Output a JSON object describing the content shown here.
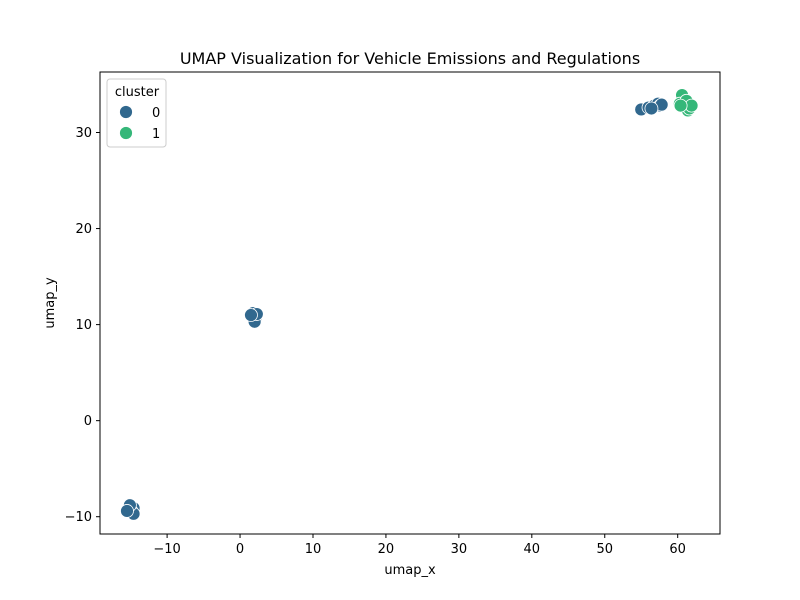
{
  "chart_data": {
    "type": "scatter",
    "title": "UMAP Visualization for Vehicle Emissions and Regulations",
    "xlabel": "umap_x",
    "ylabel": "umap_y",
    "xlim": [
      -19.2,
      65.8
    ],
    "ylim": [
      -11.8,
      36.3
    ],
    "xticks": [
      -10,
      0,
      10,
      20,
      30,
      40,
      50,
      60
    ],
    "yticks": [
      -10,
      0,
      10,
      20,
      30
    ],
    "xtick_labels": [
      "−10",
      "0",
      "10",
      "20",
      "30",
      "40",
      "50",
      "60"
    ],
    "ytick_labels": [
      "−10",
      "0",
      "10",
      "20",
      "30"
    ],
    "grid": false,
    "legend": {
      "title": "cluster",
      "placement": "top-left"
    },
    "series": [
      {
        "name": "0",
        "color": "#31688e",
        "points": [
          [
            -15.0,
            -8.9
          ],
          [
            -14.6,
            -9.1
          ],
          [
            -14.9,
            -9.4
          ],
          [
            -15.3,
            -9.2
          ],
          [
            -14.6,
            -9.7
          ],
          [
            -15.1,
            -8.8
          ],
          [
            -15.5,
            -9.4
          ],
          [
            1.7,
            11.0
          ],
          [
            2.1,
            10.6
          ],
          [
            2.0,
            10.3
          ],
          [
            1.8,
            11.2
          ],
          [
            2.3,
            11.1
          ],
          [
            1.5,
            11.0
          ],
          [
            55.0,
            32.4
          ],
          [
            56.0,
            32.6
          ],
          [
            56.8,
            32.8
          ],
          [
            57.3,
            33.0
          ],
          [
            57.6,
            32.8
          ],
          [
            57.8,
            32.9
          ],
          [
            56.4,
            32.5
          ]
        ]
      },
      {
        "name": "1",
        "color": "#35b779",
        "points": [
          [
            60.6,
            33.9
          ],
          [
            60.3,
            33.0
          ],
          [
            60.7,
            32.7
          ],
          [
            61.1,
            32.6
          ],
          [
            61.4,
            32.3
          ],
          [
            61.6,
            32.5
          ],
          [
            61.2,
            33.3
          ],
          [
            61.9,
            32.8
          ],
          [
            60.4,
            32.8
          ]
        ]
      }
    ]
  }
}
